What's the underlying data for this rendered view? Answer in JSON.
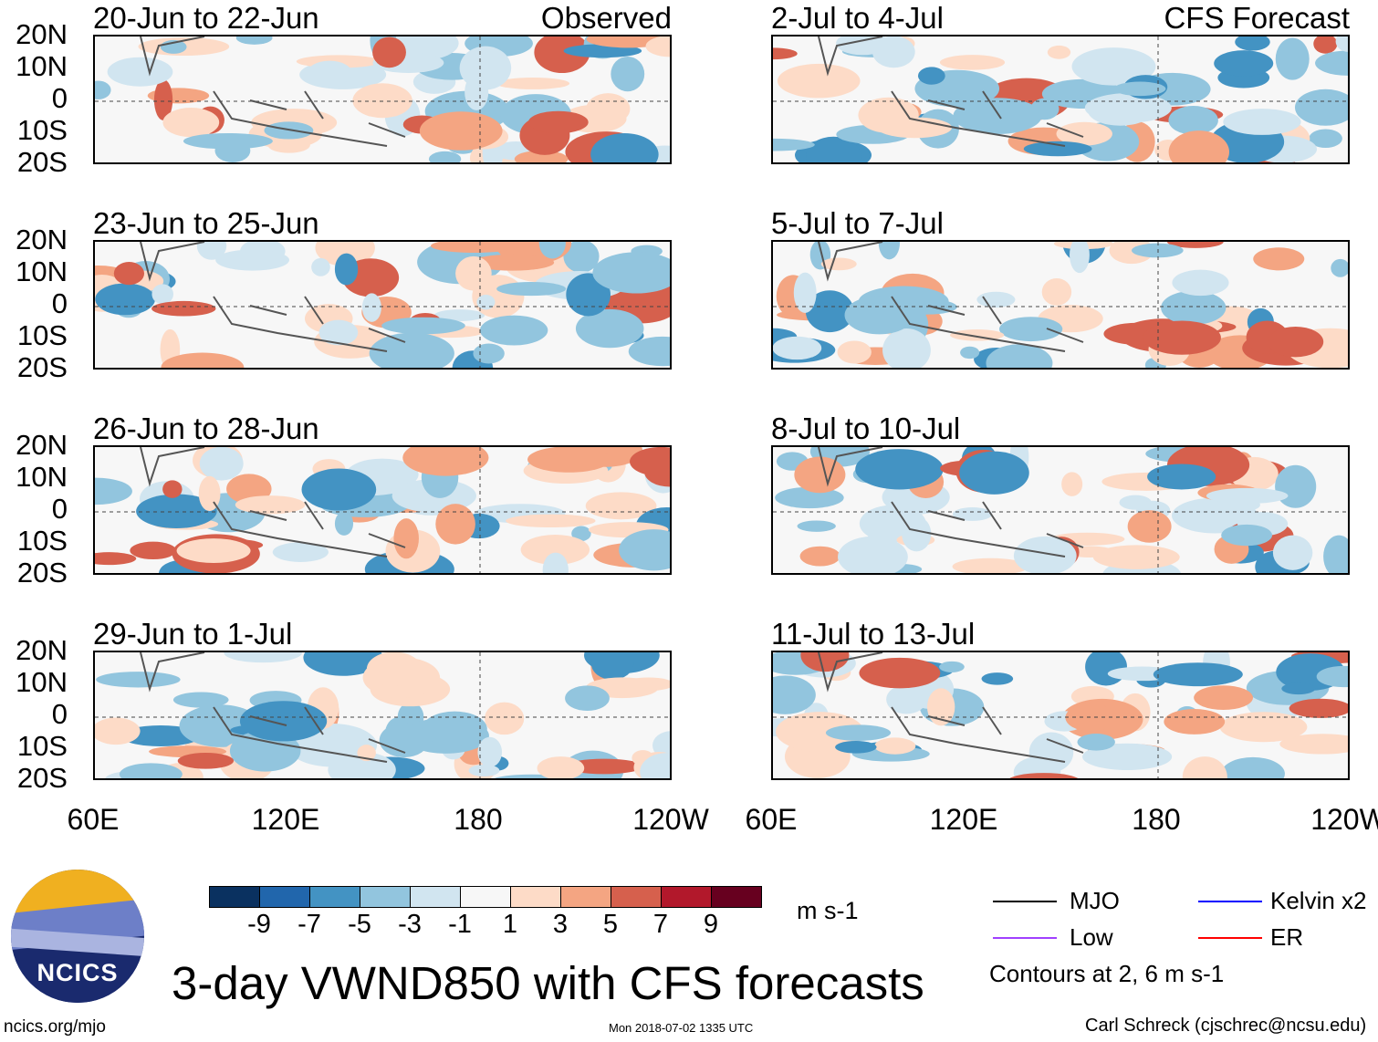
{
  "panels": [
    {
      "title": "20-Jun to 22-Jun",
      "label": "Observed"
    },
    {
      "title": "2-Jul to 4-Jul",
      "label": "CFS Forecast"
    },
    {
      "title": "23-Jun to 25-Jun",
      "label": ""
    },
    {
      "title": "5-Jul to 7-Jul",
      "label": ""
    },
    {
      "title": "26-Jun to 28-Jun",
      "label": ""
    },
    {
      "title": "8-Jul to 10-Jul",
      "label": ""
    },
    {
      "title": "29-Jun to 1-Jul",
      "label": ""
    },
    {
      "title": "11-Jul to 13-Jul",
      "label": ""
    }
  ],
  "lat_labels": [
    "20N",
    "10N",
    "0",
    "10S",
    "20S"
  ],
  "lon_labels": [
    "60E",
    "120E",
    "180",
    "120W"
  ],
  "colorbar": {
    "colors": [
      "#0a3160",
      "#2166ac",
      "#4393c3",
      "#92c5de",
      "#d1e5f0",
      "#f7f7f7",
      "#fddbc7",
      "#f4a582",
      "#d6604d",
      "#b2182b",
      "#67001f"
    ],
    "labels": [
      "-9",
      "-7",
      "-5",
      "-3",
      "-1",
      "1",
      "3",
      "5",
      "7",
      "9"
    ],
    "units": "m s-1"
  },
  "legend": {
    "items": [
      {
        "label": "MJO",
        "color": "#000000"
      },
      {
        "label": "Kelvin x2",
        "color": "#0000ff"
      },
      {
        "label": "Low",
        "color": "#a040ff"
      },
      {
        "label": "ER",
        "color": "#ff0000"
      }
    ],
    "note": "Contours at 2, 6 m s-1"
  },
  "title": "3-day VWND850 with CFS forecasts",
  "logo_text": "NCICS",
  "footer": {
    "url": "ncics.org/mjo",
    "timestamp": "Mon 2018-07-02 1335 UTC",
    "author": "Carl Schreck (cjschrec@ncsu.edu)"
  }
}
